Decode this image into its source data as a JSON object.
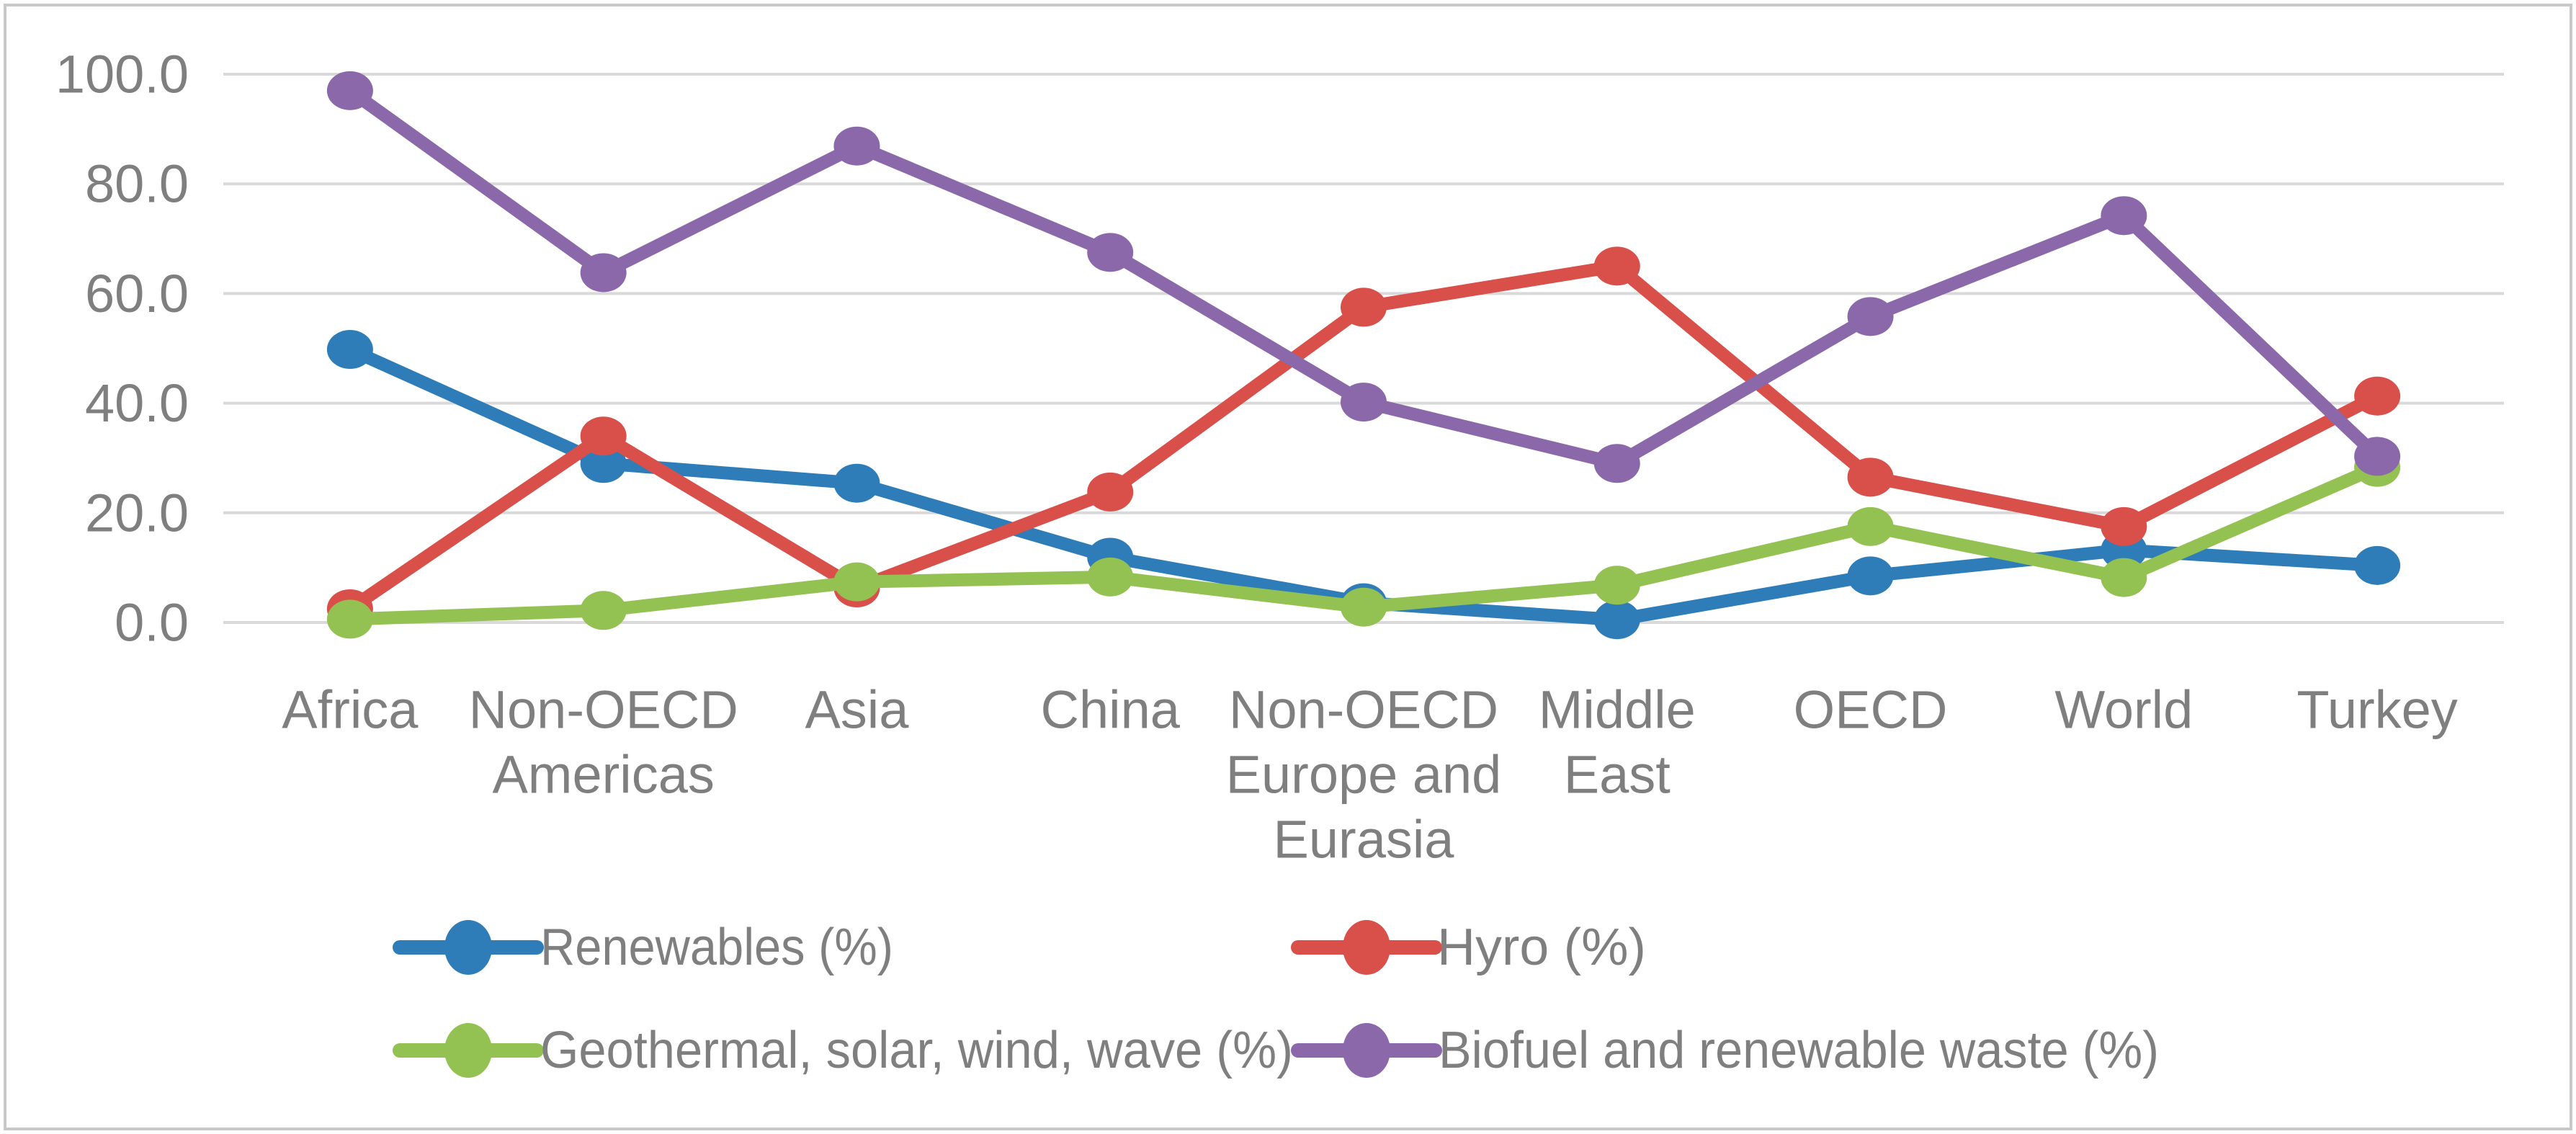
{
  "chart_data": {
    "type": "line",
    "title": "",
    "categories": [
      "Africa",
      "Non-OECD Americas",
      "Asia",
      "China",
      "Non-OECD Europe and Eurasia",
      "Middle East",
      "OECD",
      "World",
      "Turkey"
    ],
    "category_label_lines": [
      [
        "Africa"
      ],
      [
        "Non-OECD",
        "Americas"
      ],
      [
        "Asia"
      ],
      [
        "China"
      ],
      [
        "Non-OECD",
        "Europe and",
        "Eurasia"
      ],
      [
        "Middle",
        "East"
      ],
      [
        "OECD"
      ],
      [
        "World"
      ],
      [
        "Turkey"
      ]
    ],
    "series": [
      {
        "name": "Renewables (%)",
        "color": "#2E7DB8",
        "values": [
          49.8,
          29.0,
          25.4,
          11.9,
          3.6,
          0.5,
          8.5,
          13.2,
          10.4
        ]
      },
      {
        "name": "Hyro (%)",
        "color": "#D94F4A",
        "values": [
          2.5,
          34.0,
          6.3,
          23.8,
          57.5,
          65.0,
          26.5,
          17.5,
          41.3
        ]
      },
      {
        "name": "Geothermal, solar, wind, wave (%)",
        "color": "#93C152",
        "values": [
          0.6,
          2.2,
          7.4,
          8.3,
          2.8,
          6.8,
          17.5,
          8.2,
          28.3
        ]
      },
      {
        "name": "Biofuel and renewable waste (%)",
        "color": "#8A68A9",
        "values": [
          97.0,
          63.8,
          86.9,
          67.5,
          40.2,
          29.0,
          55.8,
          74.2,
          30.3
        ]
      }
    ],
    "y_axis": {
      "min": 0,
      "max": 100,
      "step": 20,
      "tick_labels": [
        "0.0",
        "20.0",
        "40.0",
        "60.0",
        "80.0",
        "100.0"
      ]
    },
    "grid": true,
    "legend_position": "bottom",
    "legend_layout": [
      [
        0,
        1
      ],
      [
        2,
        3
      ]
    ]
  },
  "colors": {
    "gridline": "#D9D9D9",
    "axis_text": "#7F7F7F",
    "frame_border": "#C8C8C8",
    "background": "#FFFFFF"
  }
}
